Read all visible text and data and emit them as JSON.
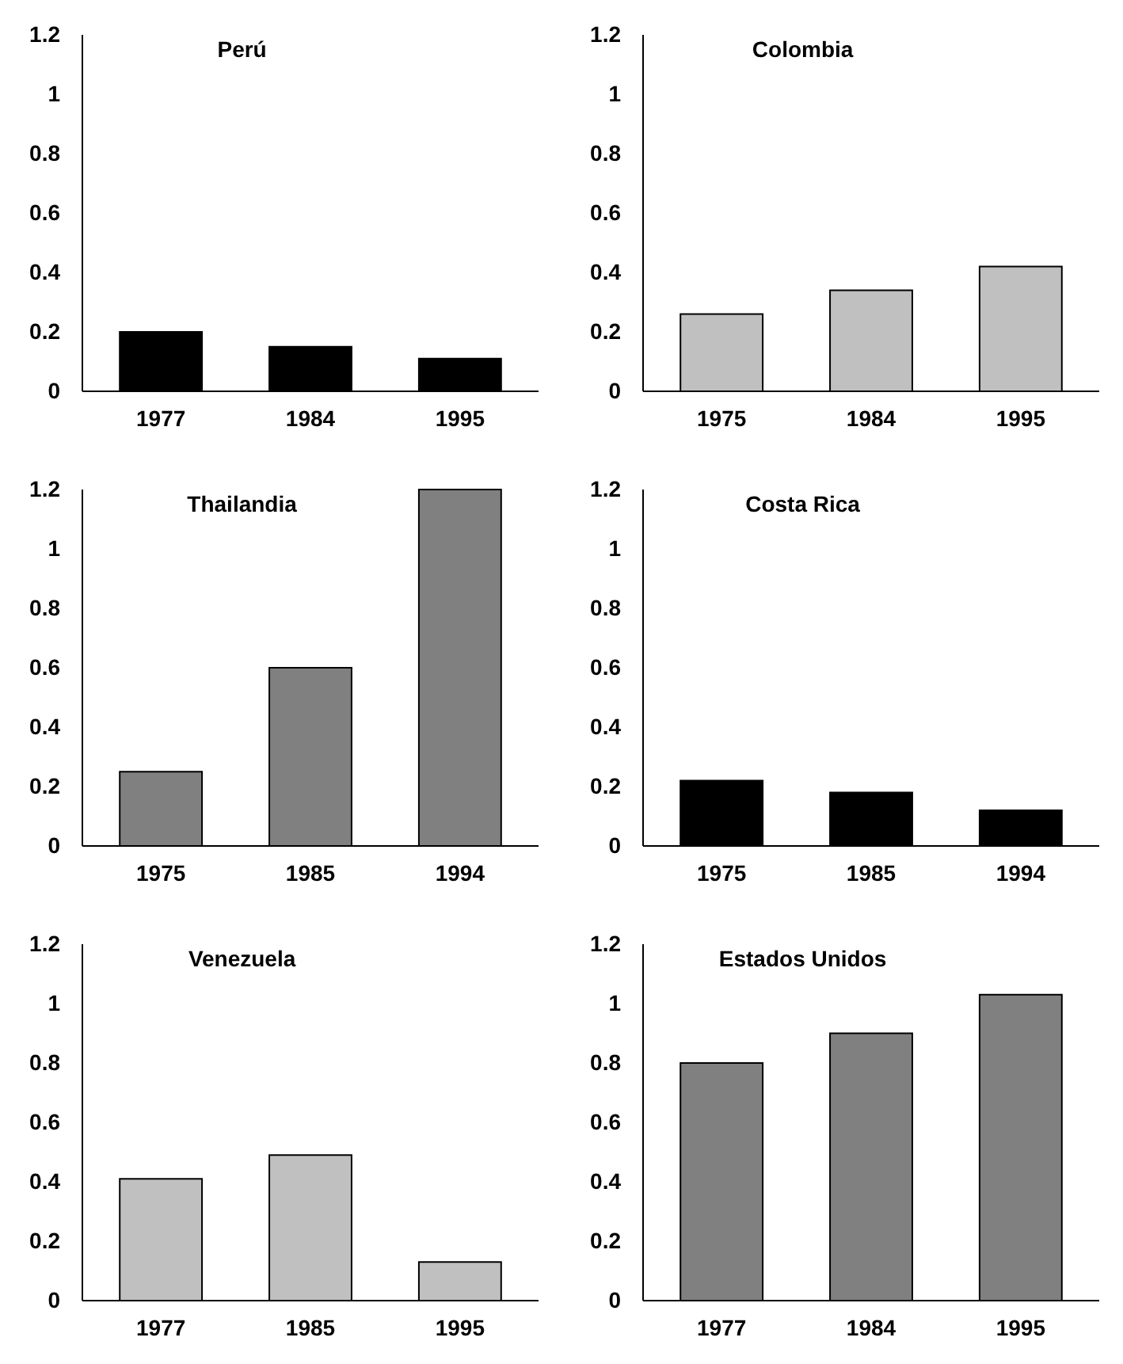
{
  "chart_data": [
    {
      "type": "bar",
      "title": "Perú",
      "categories": [
        "1977",
        "1984",
        "1995"
      ],
      "values": [
        0.2,
        0.15,
        0.11
      ],
      "color": "#000000",
      "ylim": [
        0,
        1.2
      ],
      "yticks": [
        0,
        0.2,
        0.4,
        0.6,
        0.8,
        1,
        1.2
      ]
    },
    {
      "type": "bar",
      "title": "Colombia",
      "categories": [
        "1975",
        "1984",
        "1995"
      ],
      "values": [
        0.26,
        0.34,
        0.42
      ],
      "color": "#c0c0c0",
      "ylim": [
        0,
        1.2
      ],
      "yticks": [
        0,
        0.2,
        0.4,
        0.6,
        0.8,
        1,
        1.2
      ]
    },
    {
      "type": "bar",
      "title": "Thailandia",
      "categories": [
        "1975",
        "1985",
        "1994"
      ],
      "values": [
        0.25,
        0.6,
        1.2
      ],
      "color": "#808080",
      "ylim": [
        0,
        1.2
      ],
      "yticks": [
        0,
        0.2,
        0.4,
        0.6,
        0.8,
        1,
        1.2
      ]
    },
    {
      "type": "bar",
      "title": "Costa Rica",
      "categories": [
        "1975",
        "1985",
        "1994"
      ],
      "values": [
        0.22,
        0.18,
        0.12
      ],
      "color": "#000000",
      "ylim": [
        0,
        1.2
      ],
      "yticks": [
        0,
        0.2,
        0.4,
        0.6,
        0.8,
        1,
        1.2
      ]
    },
    {
      "type": "bar",
      "title": "Venezuela",
      "categories": [
        "1977",
        "1985",
        "1995"
      ],
      "values": [
        0.41,
        0.49,
        0.13
      ],
      "color": "#c0c0c0",
      "ylim": [
        0,
        1.2
      ],
      "yticks": [
        0,
        0.2,
        0.4,
        0.6,
        0.8,
        1,
        1.2
      ]
    },
    {
      "type": "bar",
      "title": "Estados Unidos",
      "categories": [
        "1977",
        "1984",
        "1995"
      ],
      "values": [
        0.8,
        0.9,
        1.03
      ],
      "color": "#808080",
      "ylim": [
        0,
        1.2
      ],
      "yticks": [
        0,
        0.2,
        0.4,
        0.6,
        0.8,
        1,
        1.2
      ]
    }
  ]
}
